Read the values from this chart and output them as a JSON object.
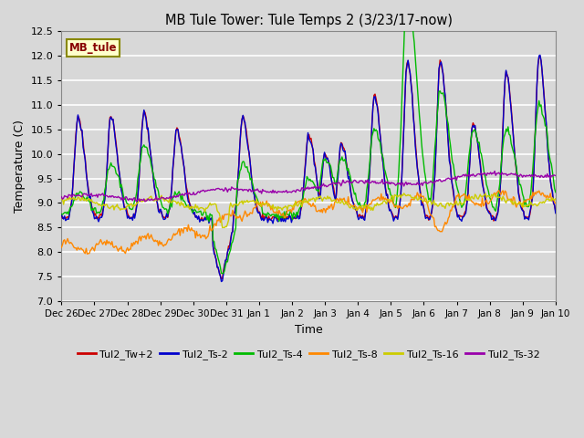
{
  "title": "MB Tule Tower: Tule Temps 2 (3/23/17-now)",
  "xlabel": "Time",
  "ylabel": "Temperature (C)",
  "ylim": [
    7.0,
    12.5
  ],
  "bg_color": "#d8d8d8",
  "plot_bg_color": "#d8d8d8",
  "grid_color": "#ffffff",
  "legend_label": "MB_tule",
  "series_labels": [
    "Tul2_Tw+2",
    "Tul2_Ts-2",
    "Tul2_Ts-4",
    "Tul2_Ts-8",
    "Tul2_Ts-16",
    "Tul2_Ts-32"
  ],
  "series_colors": [
    "#cc0000",
    "#0000cc",
    "#00bb00",
    "#ff8800",
    "#cccc00",
    "#9900aa"
  ],
  "xtick_labels": [
    "Dec 26",
    "Dec 27",
    "Dec 28",
    "Dec 29",
    "Dec 30",
    "Dec 31",
    "Jan 1",
    "Jan 2",
    "Jan 3",
    "Jan 4",
    "Jan 5",
    "Jan 6",
    "Jan 7",
    "Jan 8",
    "Jan 9",
    "Jan 10"
  ],
  "n_points": 480
}
